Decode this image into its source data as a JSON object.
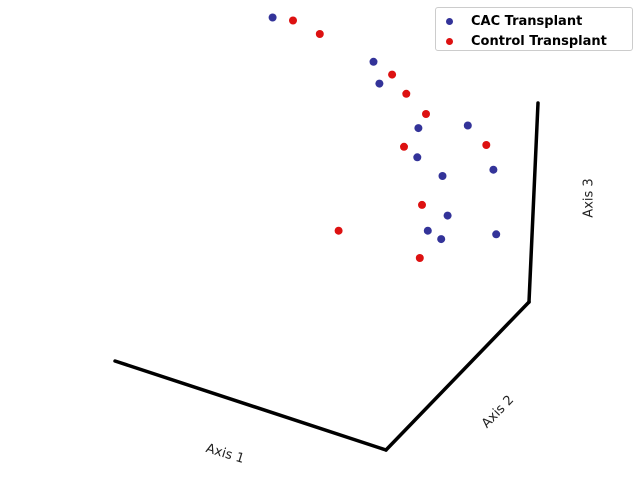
{
  "chart_data": {
    "type": "scatter",
    "projection": "3d",
    "axes": {
      "x": {
        "label": "Axis 1"
      },
      "y": {
        "label": "Axis 2"
      },
      "z": {
        "label": "Axis 3"
      }
    },
    "grid": false,
    "legend_position": "top-right",
    "series": [
      {
        "name": "CAC Transplant",
        "color": "#333399",
        "points": [
          {
            "x": 0.1,
            "y": 0.3,
            "z": 0.95
          },
          {
            "x": 0.4,
            "y": 0.45,
            "z": 0.75
          },
          {
            "x": 0.45,
            "y": 0.4,
            "z": 0.7
          },
          {
            "x": 0.5,
            "y": 0.6,
            "z": 0.35
          },
          {
            "x": 0.55,
            "y": 0.5,
            "z": 0.3
          },
          {
            "x": 0.62,
            "y": 0.55,
            "z": 0.2
          },
          {
            "x": 0.65,
            "y": 0.4,
            "z": 0.05
          },
          {
            "x": 0.7,
            "y": 0.4,
            "z": 0.03
          },
          {
            "x": 0.58,
            "y": 0.8,
            "z": 0.25
          },
          {
            "x": 0.72,
            "y": 0.72,
            "z": 0.15
          },
          {
            "x": 0.68,
            "y": 0.48,
            "z": 0.08
          },
          {
            "x": 0.8,
            "y": 0.6,
            "z": -0.05
          }
        ]
      },
      {
        "name": "Control Transplant",
        "color": "#dd1111",
        "points": [
          {
            "x": 0.15,
            "y": 0.35,
            "z": 0.92
          },
          {
            "x": 0.2,
            "y": 0.45,
            "z": 0.8
          },
          {
            "x": 0.3,
            "y": 0.85,
            "z": 1.0
          },
          {
            "x": 0.42,
            "y": 0.55,
            "z": 0.62
          },
          {
            "x": 0.45,
            "y": 0.6,
            "z": 0.5
          },
          {
            "x": 0.55,
            "y": 0.55,
            "z": 0.48
          },
          {
            "x": 0.5,
            "y": 0.5,
            "z": 0.33
          },
          {
            "x": 0.7,
            "y": 0.7,
            "z": 0.28
          },
          {
            "x": 0.4,
            "y": 0.25,
            "z": 0.05
          },
          {
            "x": 0.6,
            "y": 0.45,
            "z": 0.12
          },
          {
            "x": 0.65,
            "y": 0.35,
            "z": -0.05
          }
        ]
      }
    ]
  }
}
